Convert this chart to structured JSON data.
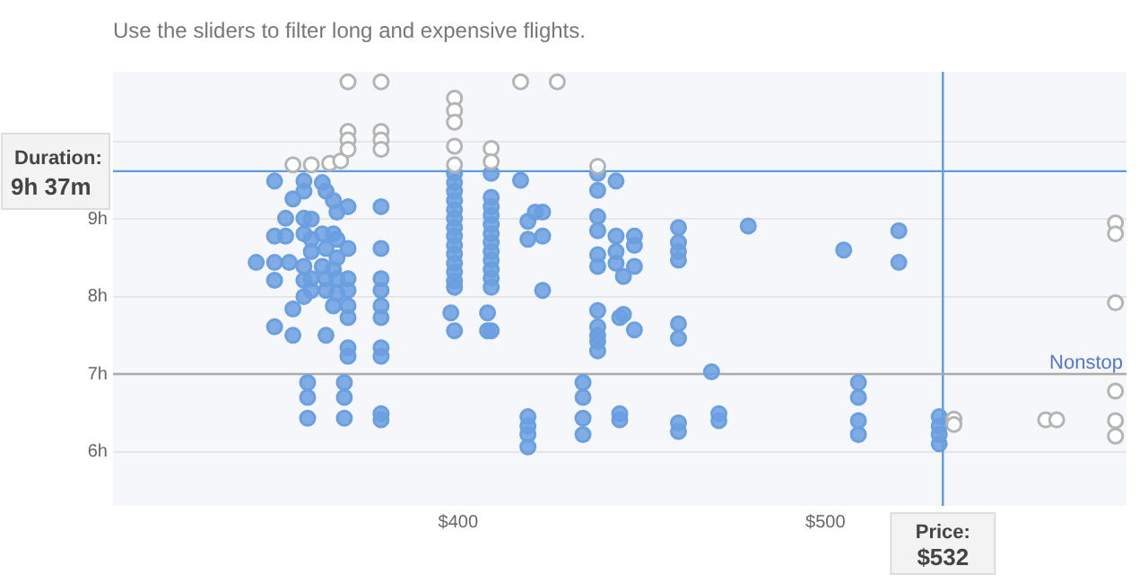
{
  "chart_data": {
    "type": "scatter",
    "title": "Use the sliders to filter long and expensive flights.",
    "xlim": [
      306,
      582
    ],
    "ylim": [
      5.3,
      10.9
    ],
    "xticks": [
      {
        "value": 400,
        "label": "$400"
      },
      {
        "value": 500,
        "label": "$500"
      }
    ],
    "yticks": [
      {
        "value": 6,
        "label": "6h"
      },
      {
        "value": 7,
        "label": "7h"
      },
      {
        "value": 8,
        "label": "8h"
      },
      {
        "value": 9,
        "label": "9h"
      },
      {
        "value": 10,
        "label": null
      }
    ],
    "grid": "y",
    "legend": false,
    "marker": "circle",
    "annotations": [
      "Duration: 9h 37m",
      "Price: $532"
    ],
    "ref_lines": [
      {
        "axis": "y",
        "value": 9.6167,
        "color": "#5b9be0"
      },
      {
        "axis": "x",
        "value": 532,
        "color": "#5b9be0"
      },
      {
        "axis": "y",
        "value": 7,
        "label": "Nonstop",
        "color": "#aaaaaa"
      }
    ],
    "series": [
      {
        "color": "#6a9fe0",
        "x": [
          345,
          350,
          350,
          350,
          350,
          350,
          354,
          353,
          353,
          355,
          355,
          355,
          358,
          358,
          358,
          358,
          358,
          358,
          358,
          359,
          359,
          359,
          360,
          360,
          360,
          360,
          360,
          363,
          363,
          363,
          364,
          364,
          364,
          364,
          364,
          366,
          366,
          366,
          366,
          367,
          367,
          367,
          367,
          367,
          369,
          369,
          369,
          370,
          370,
          370,
          370,
          370,
          370,
          370,
          370,
          379,
          379,
          379,
          379,
          379,
          379,
          379,
          379,
          379,
          379,
          398,
          399,
          399,
          399,
          399,
          399,
          399,
          399,
          399,
          399,
          399,
          399,
          399,
          399,
          399,
          399,
          408,
          408,
          409,
          409,
          409,
          409,
          409,
          409,
          409,
          409,
          409,
          409,
          409,
          409,
          409,
          417,
          419,
          419,
          419,
          419,
          419,
          419,
          421,
          423,
          423,
          423,
          434,
          434,
          434,
          434,
          438,
          438,
          438,
          438,
          438,
          438,
          438,
          438,
          438,
          438,
          438,
          443,
          443,
          443,
          443,
          444,
          444,
          444,
          445,
          445,
          448,
          448,
          448,
          448,
          460,
          460,
          460,
          460,
          460,
          460,
          460,
          460,
          469,
          471,
          471,
          479,
          505,
          509,
          509,
          509,
          509,
          520,
          520,
          531,
          531,
          531,
          531
        ],
        "values": [
          8.44,
          9.49,
          8.78,
          8.44,
          8.21,
          7.61,
          8.44,
          9.01,
          8.78,
          7.5,
          9.26,
          7.84,
          9.49,
          9.36,
          9.01,
          8.81,
          8.39,
          8.21,
          8.0,
          6.89,
          6.7,
          6.43,
          9.0,
          8.74,
          8.58,
          8.23,
          8.08,
          9.47,
          8.81,
          8.39,
          9.36,
          8.62,
          8.23,
          8.08,
          7.5,
          9.24,
          8.81,
          8.35,
          7.88,
          9.09,
          8.74,
          8.5,
          8.23,
          8.04,
          6.89,
          6.7,
          6.43,
          9.16,
          8.62,
          8.23,
          8.08,
          7.88,
          7.73,
          7.34,
          7.23,
          9.16,
          8.62,
          8.23,
          8.08,
          7.88,
          7.73,
          7.34,
          7.23,
          6.49,
          6.41,
          7.79,
          9.59,
          9.47,
          9.36,
          9.24,
          9.12,
          9.01,
          8.89,
          8.78,
          8.66,
          8.55,
          8.43,
          8.32,
          8.2,
          8.12,
          7.56,
          7.79,
          7.56,
          9.59,
          9.28,
          9.16,
          9.05,
          8.93,
          8.81,
          8.7,
          8.58,
          8.47,
          8.35,
          8.24,
          8.12,
          7.56,
          9.5,
          8.97,
          8.74,
          6.45,
          6.33,
          6.22,
          6.06,
          9.09,
          9.09,
          8.78,
          8.08,
          6.89,
          6.7,
          6.43,
          6.22,
          9.59,
          9.37,
          9.03,
          8.85,
          8.54,
          8.39,
          7.82,
          7.61,
          7.5,
          7.42,
          7.3,
          9.49,
          8.78,
          8.58,
          8.43,
          7.73,
          6.49,
          6.41,
          8.26,
          7.77,
          8.78,
          8.66,
          8.39,
          7.57,
          8.89,
          8.7,
          8.58,
          8.47,
          7.65,
          7.46,
          6.37,
          6.26,
          7.03,
          6.49,
          6.4,
          8.91,
          8.6,
          6.89,
          6.7,
          6.4,
          6.22,
          8.85,
          8.44,
          6.45,
          6.33,
          6.22,
          6.1
        ]
      },
      {
        "color": "#b4b4b4",
        "x": [
          355,
          360,
          365,
          368,
          370,
          370,
          370,
          370,
          379,
          379,
          379,
          379,
          399,
          399,
          399,
          399,
          399,
          409,
          409,
          417,
          427,
          438,
          535,
          535,
          560,
          563,
          579,
          579,
          579,
          579,
          579,
          579
        ],
        "values": [
          9.7,
          9.7,
          9.72,
          9.75,
          10.77,
          10.13,
          10.02,
          9.9,
          10.77,
          10.13,
          10.02,
          9.9,
          10.56,
          10.4,
          10.25,
          9.94,
          9.7,
          9.91,
          9.74,
          10.77,
          10.77,
          9.68,
          6.42,
          6.35,
          6.41,
          6.41,
          8.95,
          8.81,
          7.92,
          6.78,
          6.4,
          6.2
        ]
      }
    ]
  }
}
